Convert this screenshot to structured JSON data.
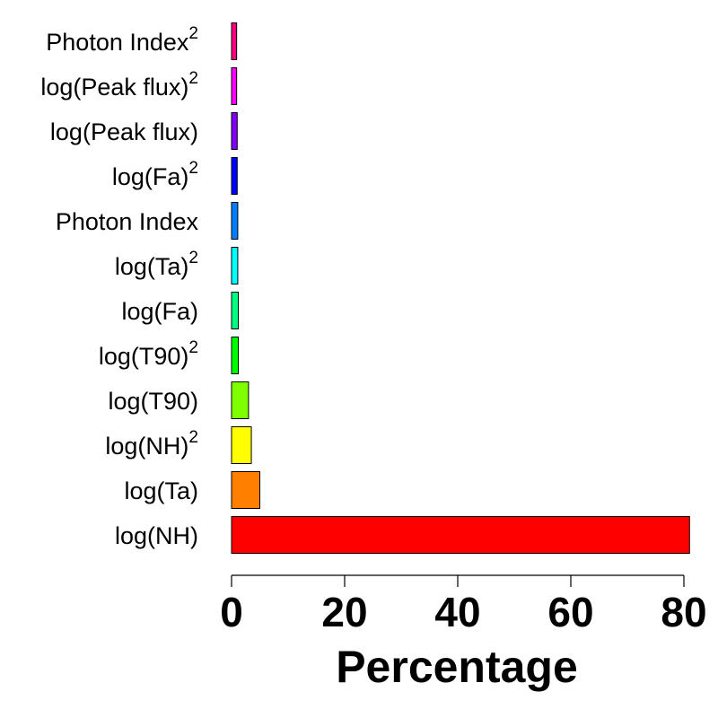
{
  "chart_data": {
    "type": "bar",
    "orientation": "horizontal",
    "xlabel": "Percentage",
    "ylabel": "",
    "xlim": [
      0,
      80
    ],
    "xticks": [
      0,
      20,
      40,
      60,
      80
    ],
    "grid": false,
    "categories": [
      {
        "label": "log(NH)",
        "superscript": "",
        "value": 81.0,
        "color": "#FF0000"
      },
      {
        "label": "log(Ta)",
        "superscript": "",
        "value": 5.0,
        "color": "#FF8000"
      },
      {
        "label": "log(NH)",
        "superscript": "2",
        "value": 3.5,
        "color": "#FFFF00"
      },
      {
        "label": "log(T90)",
        "superscript": "",
        "value": 3.0,
        "color": "#80FF00"
      },
      {
        "label": "log(T90)",
        "superscript": "2",
        "value": 1.2,
        "color": "#00FF00"
      },
      {
        "label": "log(Fa)",
        "superscript": "",
        "value": 1.2,
        "color": "#00FF80"
      },
      {
        "label": "log(Ta)",
        "superscript": "2",
        "value": 1.1,
        "color": "#00FFFF"
      },
      {
        "label": "Photon Index",
        "superscript": "",
        "value": 1.1,
        "color": "#0080FF"
      },
      {
        "label": "log(Fa)",
        "superscript": "2",
        "value": 1.0,
        "color": "#0000FF"
      },
      {
        "label": "log(Peak flux)",
        "superscript": "",
        "value": 1.0,
        "color": "#8000FF"
      },
      {
        "label": "log(Peak flux)",
        "superscript": "2",
        "value": 0.9,
        "color": "#FF00FF"
      },
      {
        "label": "Photon Index",
        "superscript": "2",
        "value": 0.9,
        "color": "#FF0080"
      }
    ]
  }
}
